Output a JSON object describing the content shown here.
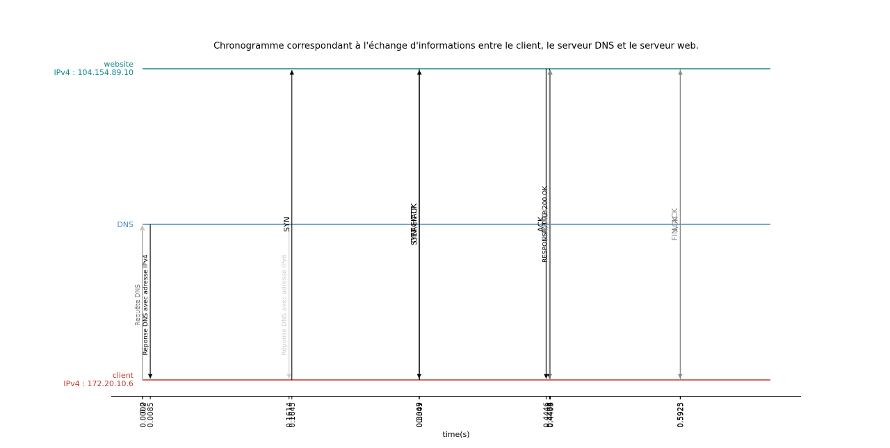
{
  "chart_data": {
    "type": "sequence_timeline",
    "title": "Chronogramme correspondant à l'échange d'informations entre le client, le serveur DNS et le serveur web.",
    "xlabel": "time(s)",
    "lanes": [
      {
        "id": "website",
        "name": "website",
        "address": "IPv4 : 104.154.89.10",
        "color": "#0e8a8a"
      },
      {
        "id": "dns",
        "name": "DNS",
        "address": "",
        "color": "#4a8cc4"
      },
      {
        "id": "client",
        "name": "client",
        "address": "IPv4 : 172.20.10.6",
        "color": "#c0392b"
      }
    ],
    "events": [
      {
        "time": 0.0,
        "tick": "0.0",
        "from": "client",
        "to": "dns",
        "label": "Requête DNS",
        "style": "black",
        "label_font": "small"
      },
      {
        "time": 0.0002,
        "tick": "0.0002",
        "from": "client",
        "to": "dns",
        "label": "Requête DNS",
        "style": "light",
        "label_font": "small"
      },
      {
        "time": 0.0085,
        "tick": "0.0085",
        "from": "dns",
        "to": "client",
        "label": "Réponse DNS avec adresse IPv4",
        "style": "black",
        "label_font": "small"
      },
      {
        "time": 0.1614,
        "tick": "0.1614",
        "from": "dns",
        "to": "client",
        "label": "Réponse DNS avec adresse IPv6",
        "style": "light",
        "label_font": "small"
      },
      {
        "time": 0.1645,
        "tick": "0.1645",
        "from": "client",
        "to": "website",
        "label": "SYN",
        "style": "black",
        "label_font": "normal"
      },
      {
        "time": 0.3047,
        "tick": "0.3047",
        "from": "website",
        "to": "client",
        "label": "SYN + ACK",
        "style": "black",
        "label_font": "normal"
      },
      {
        "time": 0.3049,
        "tick": "0.3049",
        "from": "client",
        "to": "website",
        "label": "ACK",
        "style": "black",
        "label_font": "normal"
      },
      {
        "time": 0.305,
        "tick": "0.305",
        "from": "client",
        "to": "website",
        "label": "GET HTTP",
        "style": "black",
        "label_font": "normal"
      },
      {
        "time": 0.4446,
        "tick": "0.4446",
        "from": "website",
        "to": "client",
        "label": "ACK",
        "style": "black",
        "label_font": "normal"
      },
      {
        "time": 0.4484,
        "tick": "0.4484",
        "from": "website",
        "to": "client",
        "label": "RESPONSE HTTP 200 OK",
        "style": "black",
        "label_font": "small"
      },
      {
        "time": 0.4486,
        "tick": "0.4486",
        "from": "client",
        "to": "website",
        "label": "ACK",
        "style": "gray",
        "label_font": "normal"
      },
      {
        "time": 0.4493,
        "tick": "0.4493",
        "from": "client",
        "to": "website",
        "label": "FIN, ACK",
        "style": "gray",
        "label_font": "normal"
      },
      {
        "time": 0.5923,
        "tick": "0.5923",
        "from": "website",
        "to": "client",
        "label": "FIN, ACK",
        "style": "gray",
        "label_font": "normal"
      },
      {
        "time": 0.5925,
        "tick": "0.5925",
        "from": "client",
        "to": "website",
        "label": "ACK",
        "style": "gray",
        "label_font": "normal"
      }
    ],
    "styles": {
      "black": "#000000",
      "gray": "#888888",
      "light": "#cccccc"
    }
  }
}
